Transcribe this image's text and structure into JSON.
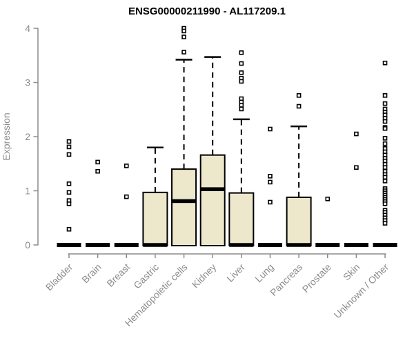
{
  "chart_data": {
    "type": "box",
    "title": "ENSG00000211990 - AL117209.1",
    "ylabel": "Expression",
    "xlabel": "",
    "ylim": [
      0,
      4
    ],
    "yticks": [
      0,
      1,
      2,
      3,
      4
    ],
    "grid": false,
    "legend": "none",
    "colors": {
      "box_fill": "#EDE7CB",
      "box_stroke": "#000000",
      "outlier_stroke": "#000000",
      "axis": "#8c8c8c",
      "title": "#000000",
      "background": "#ffffff"
    },
    "categories": [
      "Bladder",
      "Brain",
      "Breast",
      "Gastric",
      "Hematopoietic cells",
      "Kidney",
      "Liver",
      "Lung",
      "Pancreas",
      "Prostate",
      "Skin",
      "Unknown / Other"
    ],
    "boxes": [
      {
        "label": "Bladder",
        "whislo": 0,
        "q1": 0,
        "med": 0,
        "q3": 0,
        "whishi": 0,
        "outliers": [
          1.91,
          1.81,
          1.67,
          1.13,
          0.97,
          0.82,
          0.76,
          0.29
        ]
      },
      {
        "label": "Brain",
        "whislo": 0,
        "q1": 0,
        "med": 0,
        "q3": 0,
        "whishi": 0,
        "outliers": [
          1.53,
          1.36
        ]
      },
      {
        "label": "Breast",
        "whislo": 0,
        "q1": 0,
        "med": 0,
        "q3": 0,
        "whishi": 0,
        "outliers": [
          1.46,
          0.89
        ]
      },
      {
        "label": "Gastric",
        "whislo": 0,
        "q1": 0,
        "med": 0,
        "q3": 0.97,
        "whishi": 1.8,
        "outliers": []
      },
      {
        "label": "Hematopoietic cells",
        "whislo": 0,
        "q1": 0,
        "med": 0.81,
        "q3": 1.4,
        "whishi": 3.42,
        "outliers": [
          4.0,
          3.95,
          3.84,
          3.56
        ]
      },
      {
        "label": "Kidney",
        "whislo": 0,
        "q1": 0,
        "med": 1.03,
        "q3": 1.66,
        "whishi": 3.47,
        "outliers": []
      },
      {
        "label": "Liver",
        "whislo": 0,
        "q1": 0,
        "med": 0,
        "q3": 0.96,
        "whishi": 2.32,
        "outliers": [
          3.55,
          3.35,
          3.18,
          3.08,
          3.02,
          2.7,
          2.64,
          2.58,
          2.51
        ]
      },
      {
        "label": "Lung",
        "whislo": 0,
        "q1": 0,
        "med": 0,
        "q3": 0,
        "whishi": 0,
        "outliers": [
          2.14,
          1.27,
          1.16,
          0.79
        ]
      },
      {
        "label": "Pancreas",
        "whislo": 0,
        "q1": 0,
        "med": 0,
        "q3": 0.88,
        "whishi": 2.19,
        "outliers": [
          2.76,
          2.56
        ]
      },
      {
        "label": "Prostate",
        "whislo": 0,
        "q1": 0,
        "med": 0,
        "q3": 0,
        "whishi": 0,
        "outliers": [
          0.85
        ]
      },
      {
        "label": "Skin",
        "whislo": 0,
        "q1": 0,
        "med": 0,
        "q3": 0,
        "whishi": 0,
        "outliers": [
          2.05,
          1.43
        ]
      },
      {
        "label": "Unknown / Other",
        "whislo": 0,
        "q1": 0,
        "med": 0,
        "q3": 0,
        "whishi": 0,
        "outliers": [
          3.36,
          2.76,
          2.61,
          2.51,
          2.45,
          2.4,
          2.34,
          2.28,
          2.17,
          2.15,
          1.97,
          1.87,
          1.78,
          1.72,
          1.66,
          1.6,
          1.55,
          1.49,
          1.43,
          1.36,
          1.3,
          1.25,
          1.18,
          1.04,
          1.0,
          0.96,
          0.92,
          0.88,
          0.84,
          0.8,
          0.76,
          0.64,
          0.6,
          0.55,
          0.5,
          0.45,
          0.4
        ]
      }
    ]
  }
}
